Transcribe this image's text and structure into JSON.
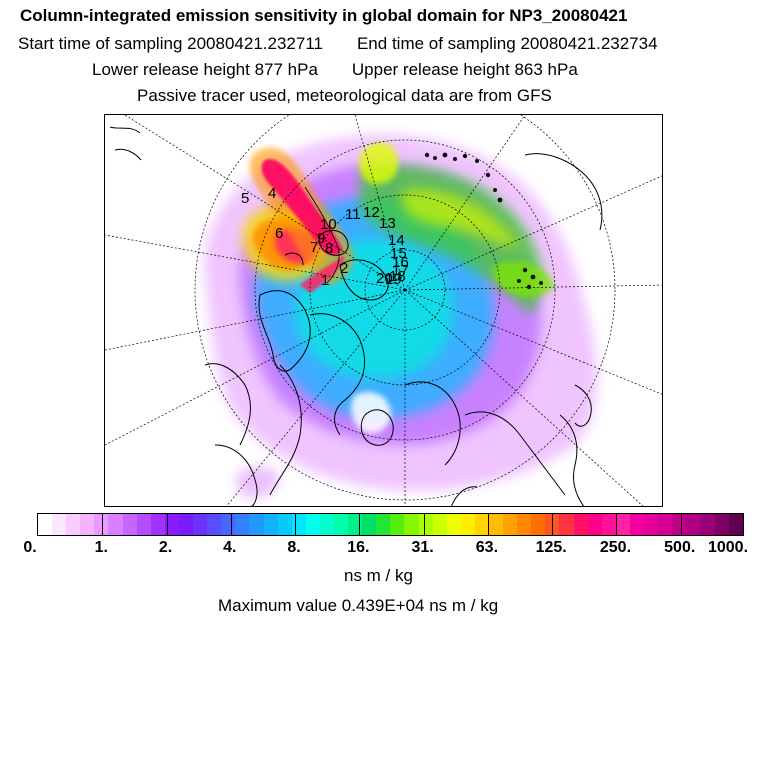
{
  "header": {
    "title": "Column-integrated emission sensitivity in global domain for NP3_20080421",
    "start_label": "Start time of sampling",
    "start_value": "20080421.232711",
    "end_label": "End time of sampling",
    "end_value": "20080421.232734",
    "lower_label": "Lower release height",
    "lower_value": "877 hPa",
    "upper_label": "Upper release height",
    "upper_value": "863 hPa",
    "note": "Passive tracer used, meteorological data are from GFS"
  },
  "map": {
    "projection": "polar-stereographic",
    "day_markers": [
      "1",
      "2",
      "4",
      "5",
      "6",
      "7",
      "8",
      "9",
      "10",
      "11",
      "12",
      "13",
      "14",
      "15",
      "16",
      "17",
      "18",
      "19",
      "20"
    ]
  },
  "colorbar": {
    "colors": [
      "#ffffff",
      "#fde6ff",
      "#f9ccff",
      "#f4b2ff",
      "#ea99ff",
      "#d880ff",
      "#c766ff",
      "#b34dff",
      "#a033ff",
      "#8c1aff",
      "#7a1aff",
      "#6a33ff",
      "#5a4cff",
      "#4866ff",
      "#3580ff",
      "#2299ff",
      "#12b2ff",
      "#05ccff",
      "#00e6ff",
      "#00ffee",
      "#00ffcc",
      "#00ffaa",
      "#00f088",
      "#00e066",
      "#22e633",
      "#55ee11",
      "#88f500",
      "#aaff00",
      "#ccff00",
      "#eeff00",
      "#ffee00",
      "#ffd400",
      "#ffbb00",
      "#ffa200",
      "#ff8800",
      "#ff6e00",
      "#ff5522",
      "#ff3344",
      "#ff1166",
      "#ff0088",
      "#ff1199",
      "#ff22a2",
      "#f500a0",
      "#e6009a",
      "#d40094",
      "#c2008c",
      "#b00082",
      "#9a0078",
      "#800066",
      "#600050"
    ],
    "tick_labels": [
      "0.",
      "1.",
      "2.",
      "4.",
      "8.",
      "16.",
      "31.",
      "63.",
      "125.",
      "250.",
      "500.",
      "1000."
    ],
    "unit": "ns m / kg"
  },
  "footer": {
    "max_label": "Maximum value",
    "max_value": "0.439E+04 ns m / kg"
  }
}
